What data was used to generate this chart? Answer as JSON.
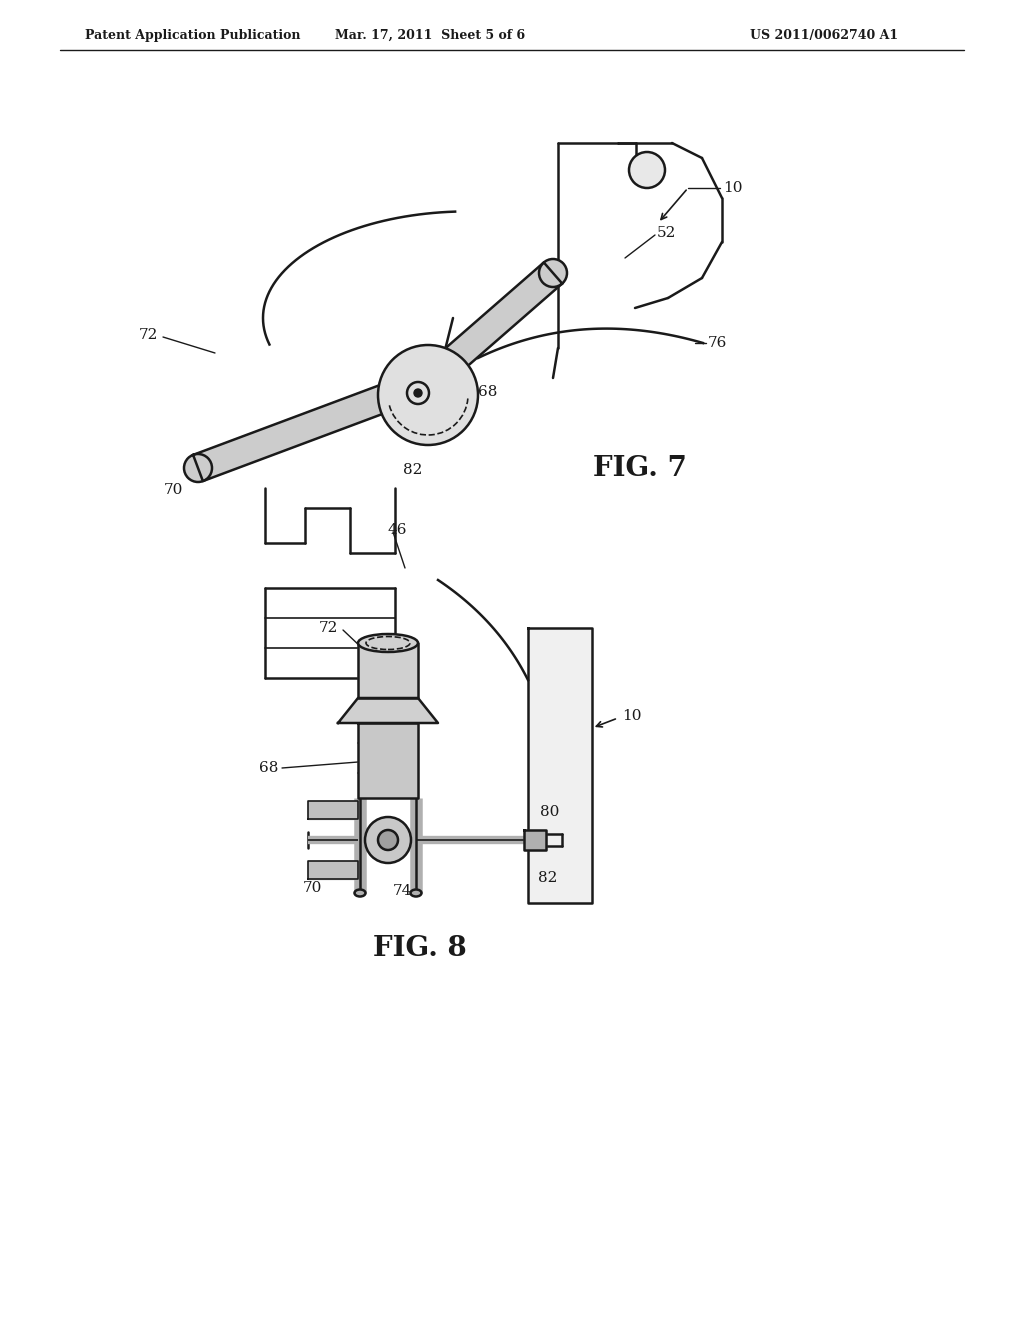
{
  "background_color": "#ffffff",
  "header_left": "Patent Application Publication",
  "header_mid": "Mar. 17, 2011  Sheet 5 of 6",
  "header_right": "US 2011/0062740 A1",
  "fig7_label": "FIG. 7",
  "fig8_label": "FIG. 8",
  "line_color": "#1a1a1a",
  "text_color": "#1a1a1a",
  "header_fontsize": 9,
  "label_fontsize": 11,
  "fig_label_fontsize": 20
}
